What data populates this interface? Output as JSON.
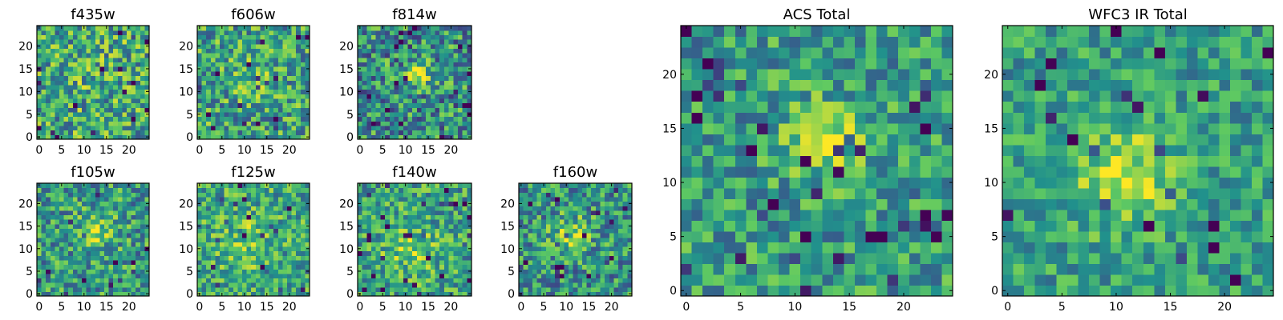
{
  "colormap": [
    "#440154",
    "#3b528b",
    "#21918c",
    "#5ec962",
    "#fde725"
  ],
  "frame_color": "#000000",
  "chart_data": [
    {
      "type": "heatmap",
      "title": "f435w",
      "rows": 25,
      "cols": 25,
      "xticks": [
        0,
        5,
        10,
        15,
        20
      ],
      "yticks": [
        0,
        5,
        10,
        15,
        20
      ],
      "xlim": [
        -0.5,
        24.5
      ],
      "ylim": [
        -0.5,
        24.5
      ],
      "vmin": 0,
      "vmax": 1,
      "grid": false
    },
    {
      "type": "heatmap",
      "title": "f606w",
      "rows": 25,
      "cols": 25,
      "xticks": [
        0,
        5,
        10,
        15,
        20
      ],
      "yticks": [
        0,
        5,
        10,
        15,
        20
      ],
      "xlim": [
        -0.5,
        24.5
      ],
      "ylim": [
        -0.5,
        24.5
      ],
      "vmin": 0,
      "vmax": 1,
      "grid": false
    },
    {
      "type": "heatmap",
      "title": "f814w",
      "rows": 25,
      "cols": 25,
      "xticks": [
        0,
        5,
        10,
        15,
        20
      ],
      "yticks": [
        0,
        5,
        10,
        15,
        20
      ],
      "xlim": [
        -0.5,
        24.5
      ],
      "ylim": [
        -0.5,
        24.5
      ],
      "vmin": 0,
      "vmax": 1,
      "grid": false
    },
    {
      "type": "heatmap",
      "title": "f105w",
      "rows": 25,
      "cols": 25,
      "xticks": [
        0,
        5,
        10,
        15,
        20
      ],
      "yticks": [
        0,
        5,
        10,
        15,
        20
      ],
      "xlim": [
        -0.5,
        24.5
      ],
      "ylim": [
        -0.5,
        24.5
      ],
      "vmin": 0,
      "vmax": 1,
      "grid": false
    },
    {
      "type": "heatmap",
      "title": "f125w",
      "rows": 25,
      "cols": 25,
      "xticks": [
        0,
        5,
        10,
        15,
        20
      ],
      "yticks": [
        0,
        5,
        10,
        15,
        20
      ],
      "xlim": [
        -0.5,
        24.5
      ],
      "ylim": [
        -0.5,
        24.5
      ],
      "vmin": 0,
      "vmax": 1,
      "grid": false
    },
    {
      "type": "heatmap",
      "title": "f140w",
      "rows": 25,
      "cols": 25,
      "xticks": [
        0,
        5,
        10,
        15,
        20
      ],
      "yticks": [
        0,
        5,
        10,
        15,
        20
      ],
      "xlim": [
        -0.5,
        24.5
      ],
      "ylim": [
        -0.5,
        24.5
      ],
      "vmin": 0,
      "vmax": 1,
      "grid": false
    },
    {
      "type": "heatmap",
      "title": "f160w",
      "rows": 25,
      "cols": 25,
      "xticks": [
        0,
        5,
        10,
        15,
        20
      ],
      "yticks": [
        0,
        5,
        10,
        15,
        20
      ],
      "xlim": [
        -0.5,
        24.5
      ],
      "ylim": [
        -0.5,
        24.5
      ],
      "vmin": 0,
      "vmax": 1,
      "grid": false
    },
    {
      "type": "heatmap",
      "title": "ACS Total",
      "rows": 25,
      "cols": 25,
      "xticks": [
        0,
        5,
        10,
        15,
        20
      ],
      "yticks": [
        0,
        5,
        10,
        15,
        20
      ],
      "xlim": [
        -0.5,
        24.5
      ],
      "ylim": [
        -0.5,
        24.5
      ],
      "vmin": 0,
      "vmax": 1,
      "grid": false
    },
    {
      "type": "heatmap",
      "title": "WFC3 IR Total",
      "rows": 25,
      "cols": 25,
      "xticks": [
        0,
        5,
        10,
        15,
        20
      ],
      "yticks": [
        0,
        5,
        10,
        15,
        20
      ],
      "xlim": [
        -0.5,
        24.5
      ],
      "ylim": [
        -0.5,
        24.5
      ],
      "vmin": 0,
      "vmax": 1,
      "grid": false
    }
  ]
}
